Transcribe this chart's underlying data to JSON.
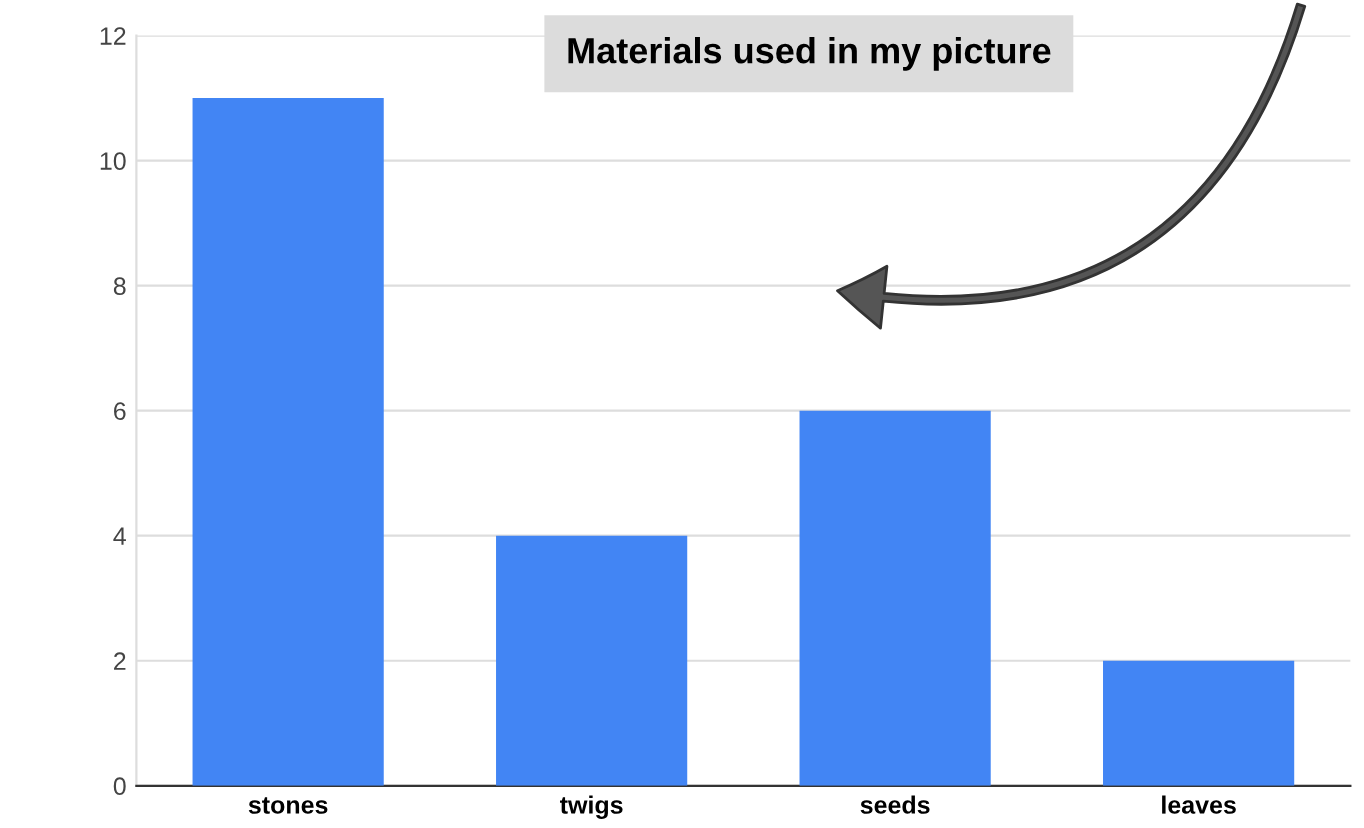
{
  "chart_data": {
    "type": "bar",
    "title": "Materials used in my picture",
    "categories": [
      "stones",
      "twigs",
      "seeds",
      "leaves"
    ],
    "values": [
      11,
      4,
      6,
      2
    ],
    "color": "#4285f4",
    "ylim": [
      0,
      12
    ],
    "yticks": [
      0,
      2,
      4,
      6,
      8,
      10,
      12
    ],
    "grid": "y"
  }
}
